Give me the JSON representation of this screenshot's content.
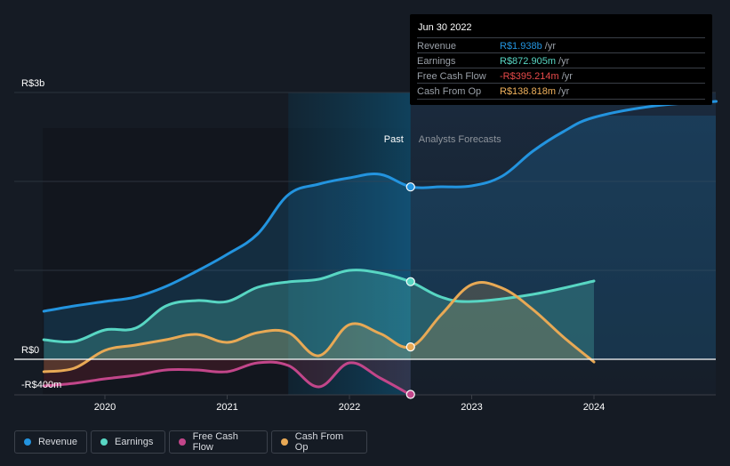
{
  "tooltip": {
    "date": "Jun 30 2022",
    "rows": [
      {
        "label": "Revenue",
        "value": "R$1.938b",
        "unit": " /yr",
        "color": "#2394df"
      },
      {
        "label": "Earnings",
        "value": "R$872.905m",
        "unit": " /yr",
        "color": "#58d6c3"
      },
      {
        "label": "Free Cash Flow",
        "value": "-R$395.214m",
        "unit": " /yr",
        "color": "#e84a4a"
      },
      {
        "label": "Cash From Op",
        "value": "R$138.818m",
        "unit": " /yr",
        "color": "#f0b25d"
      }
    ]
  },
  "legend": [
    {
      "label": "Revenue",
      "color": "#2394df"
    },
    {
      "label": "Earnings",
      "color": "#58d6c3"
    },
    {
      "label": "Free Cash Flow",
      "color": "#c2468a"
    },
    {
      "label": "Cash From Op",
      "color": "#e8a955"
    }
  ],
  "chart_data": {
    "type": "line",
    "title": "",
    "xlabel": "",
    "ylabel": "",
    "units": "R$ billions",
    "xlim": [
      2019.5,
      2025.0
    ],
    "ylim": [
      -0.4,
      3.0
    ],
    "y_ticks": [
      {
        "value": 3.0,
        "label": "R$3b"
      },
      {
        "value": 0,
        "label": "R$0"
      },
      {
        "value": -0.4,
        "label": "-R$400m"
      }
    ],
    "gridlines": [
      3.0,
      2.0,
      1.0,
      0,
      -0.4
    ],
    "x_ticks": [
      {
        "value": 2020,
        "label": "2020"
      },
      {
        "value": 2021,
        "label": "2021"
      },
      {
        "value": 2022,
        "label": "2022"
      },
      {
        "value": 2023,
        "label": "2023"
      },
      {
        "value": 2024,
        "label": "2024"
      }
    ],
    "past_label": "Past",
    "forecast_label": "Analysts Forecasts",
    "divider_x": 2022.5,
    "highlight_start": 2021.5,
    "series": [
      {
        "name": "Revenue",
        "color": "#2394df",
        "x": [
          2019.5,
          2019.75,
          2020.0,
          2020.25,
          2020.5,
          2020.75,
          2021.0,
          2021.25,
          2021.5,
          2021.75,
          2022.0,
          2022.25,
          2022.5,
          2022.75,
          2023.0,
          2023.25,
          2023.5,
          2023.75,
          2024.0,
          2024.5,
          2025.0
        ],
        "y": [
          0.54,
          0.6,
          0.65,
          0.7,
          0.82,
          0.99,
          1.18,
          1.41,
          1.85,
          1.97,
          2.04,
          2.08,
          1.94,
          1.94,
          1.95,
          2.06,
          2.34,
          2.56,
          2.72,
          2.85,
          2.9
        ]
      },
      {
        "name": "Earnings",
        "color": "#58d6c3",
        "x": [
          2019.5,
          2019.75,
          2020.0,
          2020.25,
          2020.5,
          2020.75,
          2021.0,
          2021.25,
          2021.5,
          2021.75,
          2022.0,
          2022.25,
          2022.5,
          2022.75,
          2023.0,
          2023.5,
          2024.0
        ],
        "y": [
          0.22,
          0.2,
          0.33,
          0.35,
          0.6,
          0.66,
          0.65,
          0.81,
          0.87,
          0.9,
          1.0,
          0.97,
          0.87,
          0.7,
          0.65,
          0.73,
          0.88
        ]
      },
      {
        "name": "Free Cash Flow",
        "color": "#c2468a",
        "x": [
          2019.5,
          2019.75,
          2020.0,
          2020.25,
          2020.5,
          2020.75,
          2021.0,
          2021.25,
          2021.5,
          2021.75,
          2022.0,
          2022.25,
          2022.5
        ],
        "y": [
          -0.3,
          -0.27,
          -0.22,
          -0.18,
          -0.12,
          -0.12,
          -0.14,
          -0.04,
          -0.07,
          -0.31,
          -0.04,
          -0.21,
          -0.4
        ]
      },
      {
        "name": "Cash From Op",
        "color": "#e8a955",
        "x": [
          2019.5,
          2019.75,
          2020.0,
          2020.25,
          2020.5,
          2020.75,
          2021.0,
          2021.25,
          2021.5,
          2021.75,
          2022.0,
          2022.25,
          2022.5,
          2022.75,
          2023.0,
          2023.25,
          2023.5,
          2023.75,
          2024.0
        ],
        "y": [
          -0.14,
          -0.1,
          0.1,
          0.16,
          0.22,
          0.28,
          0.19,
          0.3,
          0.3,
          0.04,
          0.39,
          0.29,
          0.14,
          0.5,
          0.84,
          0.8,
          0.56,
          0.25,
          -0.03
        ]
      }
    ],
    "markers": [
      {
        "series": "Revenue",
        "x": 2022.5,
        "y": 1.938
      },
      {
        "series": "Earnings",
        "x": 2022.5,
        "y": 0.873
      },
      {
        "series": "Free Cash Flow",
        "x": 2022.5,
        "y": -0.395
      },
      {
        "series": "Cash From Op",
        "x": 2022.5,
        "y": 0.139
      }
    ],
    "legend_position": "bottom-left"
  }
}
